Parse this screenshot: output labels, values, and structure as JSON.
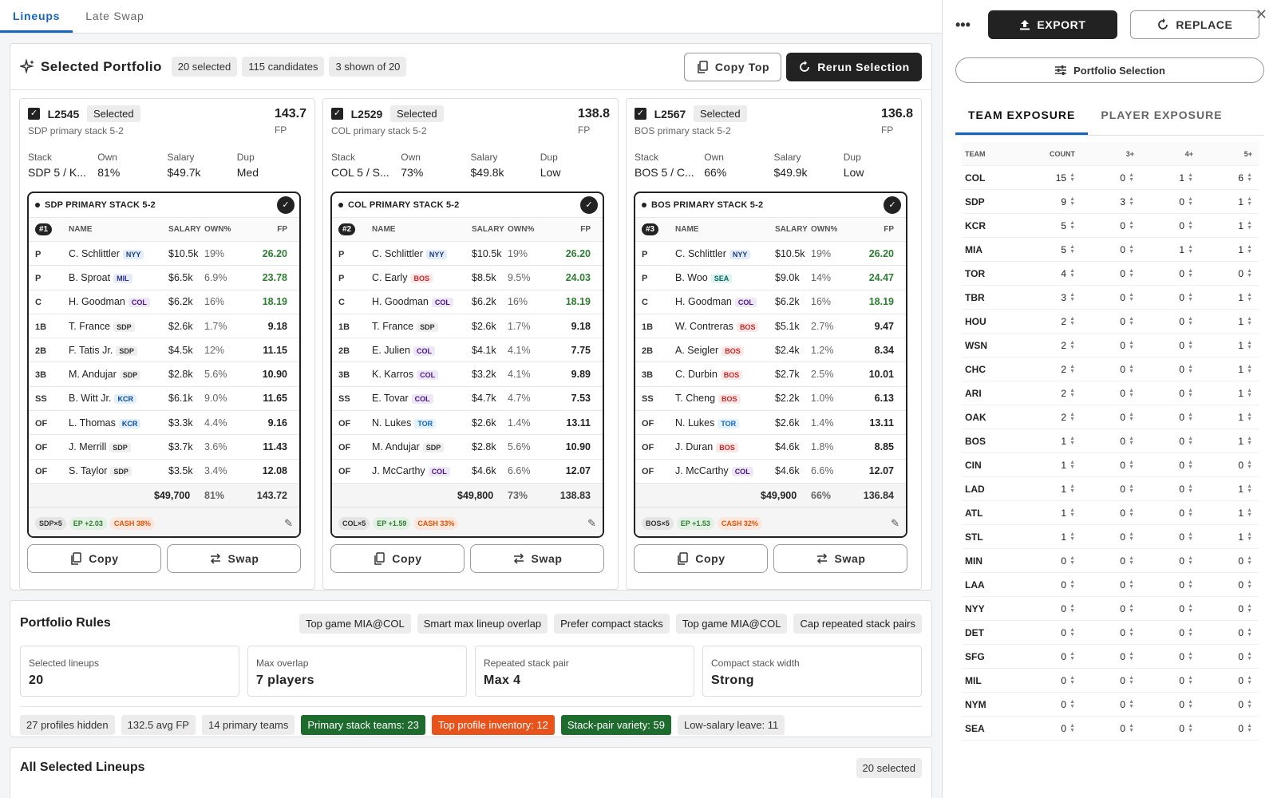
{
  "tabs": [
    "Lineups",
    "Late Swap"
  ],
  "portfolio": {
    "title": "Selected Portfolio",
    "chips": [
      "20 selected",
      "115 candidates",
      "3 shown of 20"
    ],
    "copy_top": "Copy Top",
    "rerun": "Rerun Selection"
  },
  "cards": [
    {
      "id": "L2545",
      "status": "Selected",
      "subtitle": "SDP primary stack 5-2",
      "fp": "143.7",
      "fp_unit": "FP",
      "stats": [
        {
          "k": "Stack",
          "v": "SDP 5 / K..."
        },
        {
          "k": "Own",
          "v": "81%"
        },
        {
          "k": "Salary",
          "v": "$49.7k"
        },
        {
          "k": "Dup",
          "v": "Med"
        }
      ],
      "header": "SDP PRIMARY STACK 5-2",
      "rank": "#1",
      "cols": [
        "NAME",
        "SALARY",
        "OWN%",
        "FP"
      ],
      "players": [
        {
          "pos": "P",
          "name": "C. Schlittler",
          "team": "NYY",
          "salary": "$10.5k",
          "own": "19%",
          "fp": "26.20",
          "hi": true
        },
        {
          "pos": "P",
          "name": "B. Sproat",
          "team": "MIL",
          "salary": "$6.5k",
          "own": "6.9%",
          "fp": "23.78",
          "hi": true
        },
        {
          "pos": "C",
          "name": "H. Goodman",
          "team": "COL",
          "salary": "$6.2k",
          "own": "16%",
          "fp": "18.19",
          "hi": true
        },
        {
          "pos": "1B",
          "name": "T. France",
          "team": "SDP",
          "salary": "$2.6k",
          "own": "1.7%",
          "fp": "9.18"
        },
        {
          "pos": "2B",
          "name": "F. Tatis Jr.",
          "team": "SDP",
          "salary": "$4.5k",
          "own": "12%",
          "fp": "11.15"
        },
        {
          "pos": "3B",
          "name": "M. Andujar",
          "team": "SDP",
          "salary": "$2.8k",
          "own": "5.6%",
          "fp": "10.90"
        },
        {
          "pos": "SS",
          "name": "B. Witt Jr.",
          "team": "KCR",
          "salary": "$6.1k",
          "own": "9.0%",
          "fp": "11.65"
        },
        {
          "pos": "OF",
          "name": "L. Thomas",
          "team": "KCR",
          "salary": "$3.3k",
          "own": "4.4%",
          "fp": "9.16"
        },
        {
          "pos": "OF",
          "name": "J. Merrill",
          "team": "SDP",
          "salary": "$3.7k",
          "own": "3.6%",
          "fp": "11.43"
        },
        {
          "pos": "OF",
          "name": "S. Taylor",
          "team": "SDP",
          "salary": "$3.5k",
          "own": "3.4%",
          "fp": "12.08"
        }
      ],
      "total": {
        "salary": "$49,700",
        "own": "81%",
        "fp": "143.72"
      },
      "tags": {
        "stack": "SDP×5",
        "ep": "EP +2.03",
        "cash": "CASH 38%"
      },
      "copy": "Copy",
      "swap": "Swap"
    },
    {
      "id": "L2529",
      "status": "Selected",
      "subtitle": "COL primary stack 5-2",
      "fp": "138.8",
      "fp_unit": "FP",
      "stats": [
        {
          "k": "Stack",
          "v": "COL 5 / S..."
        },
        {
          "k": "Own",
          "v": "73%"
        },
        {
          "k": "Salary",
          "v": "$49.8k"
        },
        {
          "k": "Dup",
          "v": "Low"
        }
      ],
      "header": "COL PRIMARY STACK 5-2",
      "rank": "#2",
      "cols": [
        "NAME",
        "SALARY",
        "OWN%",
        "FP"
      ],
      "players": [
        {
          "pos": "P",
          "name": "C. Schlittler",
          "team": "NYY",
          "salary": "$10.5k",
          "own": "19%",
          "fp": "26.20",
          "hi": true
        },
        {
          "pos": "P",
          "name": "C. Early",
          "team": "BOS",
          "salary": "$8.5k",
          "own": "9.5%",
          "fp": "24.03",
          "hi": true
        },
        {
          "pos": "C",
          "name": "H. Goodman",
          "team": "COL",
          "salary": "$6.2k",
          "own": "16%",
          "fp": "18.19",
          "hi": true
        },
        {
          "pos": "1B",
          "name": "T. France",
          "team": "SDP",
          "salary": "$2.6k",
          "own": "1.7%",
          "fp": "9.18"
        },
        {
          "pos": "2B",
          "name": "E. Julien",
          "team": "COL",
          "salary": "$4.1k",
          "own": "4.1%",
          "fp": "7.75"
        },
        {
          "pos": "3B",
          "name": "K. Karros",
          "team": "COL",
          "salary": "$3.2k",
          "own": "4.1%",
          "fp": "9.89"
        },
        {
          "pos": "SS",
          "name": "E. Tovar",
          "team": "COL",
          "salary": "$4.7k",
          "own": "4.7%",
          "fp": "7.53"
        },
        {
          "pos": "OF",
          "name": "N. Lukes",
          "team": "TOR",
          "salary": "$2.6k",
          "own": "1.4%",
          "fp": "13.11"
        },
        {
          "pos": "OF",
          "name": "M. Andujar",
          "team": "SDP",
          "salary": "$2.8k",
          "own": "5.6%",
          "fp": "10.90"
        },
        {
          "pos": "OF",
          "name": "J. McCarthy",
          "team": "COL",
          "salary": "$4.6k",
          "own": "6.6%",
          "fp": "12.07"
        }
      ],
      "total": {
        "salary": "$49,800",
        "own": "73%",
        "fp": "138.83"
      },
      "tags": {
        "stack": "COL×5",
        "ep": "EP +1.59",
        "cash": "CASH 33%"
      },
      "copy": "Copy",
      "swap": "Swap"
    },
    {
      "id": "L2567",
      "status": "Selected",
      "subtitle": "BOS primary stack 5-2",
      "fp": "136.8",
      "fp_unit": "FP",
      "stats": [
        {
          "k": "Stack",
          "v": "BOS 5 / C..."
        },
        {
          "k": "Own",
          "v": "66%"
        },
        {
          "k": "Salary",
          "v": "$49.9k"
        },
        {
          "k": "Dup",
          "v": "Low"
        }
      ],
      "header": "BOS PRIMARY STACK 5-2",
      "rank": "#3",
      "cols": [
        "NAME",
        "SALARY",
        "OWN%",
        "FP"
      ],
      "players": [
        {
          "pos": "P",
          "name": "C. Schlittler",
          "team": "NYY",
          "salary": "$10.5k",
          "own": "19%",
          "fp": "26.20",
          "hi": true
        },
        {
          "pos": "P",
          "name": "B. Woo",
          "team": "SEA",
          "salary": "$9.0k",
          "own": "14%",
          "fp": "24.47",
          "hi": true
        },
        {
          "pos": "C",
          "name": "H. Goodman",
          "team": "COL",
          "salary": "$6.2k",
          "own": "16%",
          "fp": "18.19",
          "hi": true
        },
        {
          "pos": "1B",
          "name": "W. Contreras",
          "team": "BOS",
          "salary": "$5.1k",
          "own": "2.7%",
          "fp": "9.47"
        },
        {
          "pos": "2B",
          "name": "A. Seigler",
          "team": "BOS",
          "salary": "$2.4k",
          "own": "1.2%",
          "fp": "8.34"
        },
        {
          "pos": "3B",
          "name": "C. Durbin",
          "team": "BOS",
          "salary": "$2.7k",
          "own": "2.5%",
          "fp": "10.01"
        },
        {
          "pos": "SS",
          "name": "T. Cheng",
          "team": "BOS",
          "salary": "$2.2k",
          "own": "1.0%",
          "fp": "6.13"
        },
        {
          "pos": "OF",
          "name": "N. Lukes",
          "team": "TOR",
          "salary": "$2.6k",
          "own": "1.4%",
          "fp": "13.11"
        },
        {
          "pos": "OF",
          "name": "J. Duran",
          "team": "BOS",
          "salary": "$4.6k",
          "own": "1.8%",
          "fp": "8.85"
        },
        {
          "pos": "OF",
          "name": "J. McCarthy",
          "team": "COL",
          "salary": "$4.6k",
          "own": "6.6%",
          "fp": "12.07"
        }
      ],
      "total": {
        "salary": "$49,900",
        "own": "66%",
        "fp": "136.84"
      },
      "tags": {
        "stack": "BOS×5",
        "ep": "EP +1.53",
        "cash": "CASH 32%"
      },
      "copy": "Copy",
      "swap": "Swap"
    }
  ],
  "rules": {
    "title": "Portfolio Rules",
    "chips": [
      "Top game MIA@COL",
      "Smart max lineup overlap",
      "Prefer compact stacks",
      "Top game MIA@COL",
      "Cap repeated stack pairs"
    ],
    "cards": [
      {
        "k": "Selected lineups",
        "v": "20"
      },
      {
        "k": "Max overlap",
        "v": "7 players"
      },
      {
        "k": "Repeated stack pair",
        "v": "Max 4"
      },
      {
        "k": "Compact stack width",
        "v": "Strong"
      }
    ],
    "stats": [
      {
        "t": "27 profiles hidden",
        "c": ""
      },
      {
        "t": "132.5 avg FP",
        "c": ""
      },
      {
        "t": "14 primary teams",
        "c": ""
      },
      {
        "t": "Primary stack teams: 23",
        "c": "g"
      },
      {
        "t": "Top profile inventory: 12",
        "c": "o"
      },
      {
        "t": "Stack-pair variety: 59",
        "c": "g"
      },
      {
        "t": "Low-salary leave: 11",
        "c": ""
      }
    ]
  },
  "all_lineups": {
    "title": "All Selected Lineups",
    "chip": "20 selected"
  },
  "right": {
    "more": "•••",
    "export": "EXPORT",
    "replace": "REPLACE",
    "portfolio_selection": "Portfolio Selection",
    "tabs": [
      "TEAM EXPOSURE",
      "PLAYER EXPOSURE"
    ],
    "cols": [
      "TEAM",
      "COUNT",
      "3+",
      "4+",
      "5+"
    ],
    "rows": [
      [
        "COL",
        "15",
        "0",
        "1",
        "6"
      ],
      [
        "SDP",
        "9",
        "3",
        "0",
        "1"
      ],
      [
        "KCR",
        "5",
        "0",
        "0",
        "1"
      ],
      [
        "MIA",
        "5",
        "0",
        "1",
        "1"
      ],
      [
        "TOR",
        "4",
        "0",
        "0",
        "0"
      ],
      [
        "TBR",
        "3",
        "0",
        "0",
        "1"
      ],
      [
        "HOU",
        "2",
        "0",
        "0",
        "1"
      ],
      [
        "WSN",
        "2",
        "0",
        "0",
        "1"
      ],
      [
        "CHC",
        "2",
        "0",
        "0",
        "1"
      ],
      [
        "ARI",
        "2",
        "0",
        "0",
        "1"
      ],
      [
        "OAK",
        "2",
        "0",
        "0",
        "1"
      ],
      [
        "BOS",
        "1",
        "0",
        "0",
        "1"
      ],
      [
        "CIN",
        "1",
        "0",
        "0",
        "0"
      ],
      [
        "LAD",
        "1",
        "0",
        "0",
        "1"
      ],
      [
        "ATL",
        "1",
        "0",
        "0",
        "1"
      ],
      [
        "STL",
        "1",
        "0",
        "0",
        "1"
      ],
      [
        "MIN",
        "0",
        "0",
        "0",
        "0"
      ],
      [
        "LAA",
        "0",
        "0",
        "0",
        "0"
      ],
      [
        "NYY",
        "0",
        "0",
        "0",
        "0"
      ],
      [
        "DET",
        "0",
        "0",
        "0",
        "0"
      ],
      [
        "SFG",
        "0",
        "0",
        "0",
        "0"
      ],
      [
        "MIL",
        "0",
        "0",
        "0",
        "0"
      ],
      [
        "NYM",
        "0",
        "0",
        "0",
        "0"
      ],
      [
        "SEA",
        "0",
        "0",
        "0",
        "0"
      ]
    ]
  }
}
